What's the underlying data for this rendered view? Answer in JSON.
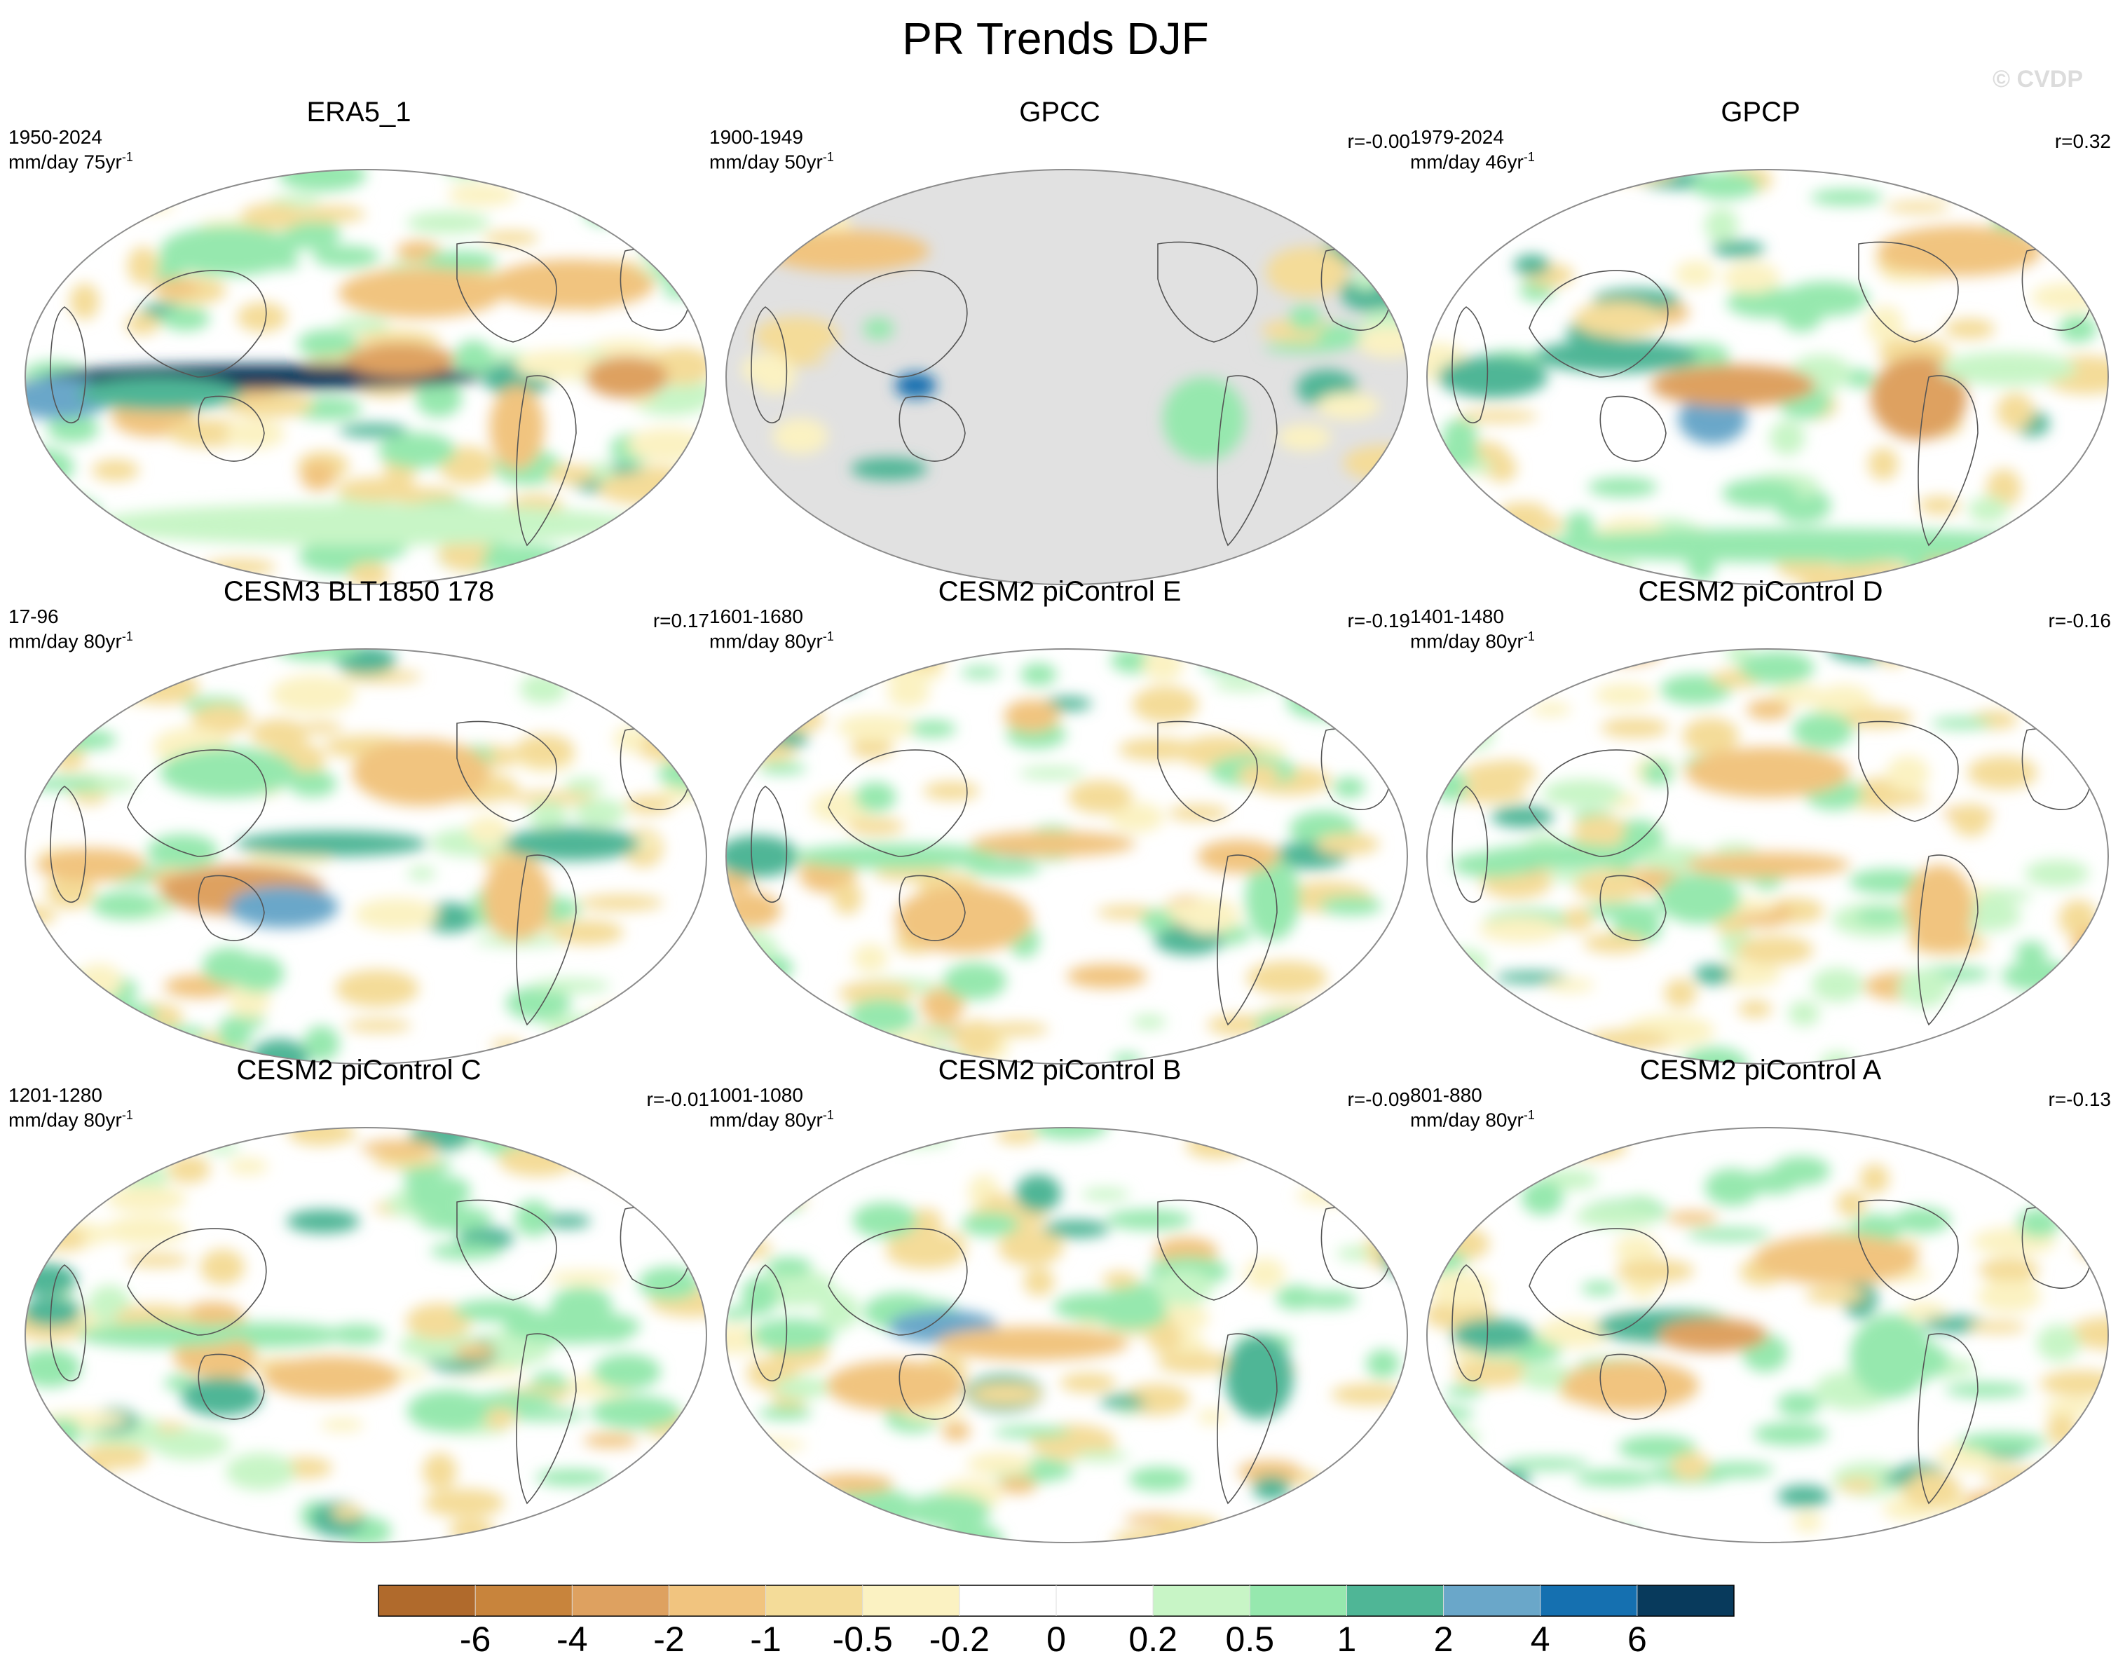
{
  "title": "PR Trends DJF",
  "watermark": "© CVDP",
  "colors": {
    "ocean_base": "#ffffff",
    "missing": "#e1e1e1",
    "outline": "#8c8c8c",
    "coast": "#555555"
  },
  "panels": [
    {
      "title": "ERA5_1",
      "period": "1950-2024",
      "units_main": "mm/day 75yr",
      "units_sup": "-1",
      "corr": "",
      "masked": false,
      "blobs": [
        [
          0.35,
          0.5,
          0.32,
          0.03,
          8
        ],
        [
          0.05,
          0.55,
          0.08,
          0.05,
          3
        ],
        [
          0.2,
          0.54,
          0.12,
          0.04,
          2
        ],
        [
          0.55,
          0.46,
          0.08,
          0.04,
          -2
        ],
        [
          0.58,
          0.3,
          0.12,
          0.06,
          -1
        ],
        [
          0.8,
          0.28,
          0.12,
          0.06,
          -1
        ],
        [
          0.5,
          0.85,
          0.4,
          0.05,
          0.5
        ],
        [
          0.72,
          0.62,
          0.04,
          0.1,
          -1
        ],
        [
          0.3,
          0.2,
          0.1,
          0.06,
          1
        ],
        [
          0.88,
          0.5,
          0.06,
          0.05,
          -2
        ]
      ]
    },
    {
      "title": "GPCC",
      "period": "1900-1949",
      "units_main": "mm/day 50yr",
      "units_sup": "-1",
      "corr": "r=-0.00",
      "masked": true,
      "blobs": [
        [
          0.28,
          0.52,
          0.03,
          0.03,
          5
        ],
        [
          0.18,
          0.2,
          0.12,
          0.05,
          -1
        ],
        [
          0.7,
          0.6,
          0.06,
          0.1,
          1
        ],
        [
          0.85,
          0.25,
          0.06,
          0.06,
          -0.5
        ]
      ]
    },
    {
      "title": "GPCP",
      "period": "1979-2024",
      "units_main": "mm/day 46yr",
      "units_sup": "-1",
      "corr": "r=0.32",
      "masked": false,
      "blobs": [
        [
          0.42,
          0.6,
          0.05,
          0.06,
          4
        ],
        [
          0.28,
          0.45,
          0.12,
          0.04,
          2
        ],
        [
          0.1,
          0.5,
          0.08,
          0.05,
          2
        ],
        [
          0.45,
          0.52,
          0.12,
          0.05,
          -2
        ],
        [
          0.72,
          0.55,
          0.07,
          0.1,
          -2
        ],
        [
          0.55,
          0.9,
          0.4,
          0.04,
          1
        ],
        [
          0.78,
          0.2,
          0.12,
          0.06,
          -1
        ],
        [
          0.85,
          0.48,
          0.1,
          0.04,
          0.5
        ]
      ]
    },
    {
      "title": "CESM3 BLT1850 178",
      "period": "17-96",
      "units_main": "mm/day 80yr",
      "units_sup": "-1",
      "corr": "r=0.17",
      "masked": false,
      "blobs": [
        [
          0.32,
          0.58,
          0.12,
          0.06,
          -2
        ],
        [
          0.38,
          0.62,
          0.08,
          0.05,
          3
        ],
        [
          0.45,
          0.47,
          0.14,
          0.03,
          2
        ],
        [
          0.1,
          0.52,
          0.08,
          0.04,
          -1
        ],
        [
          0.3,
          0.3,
          0.1,
          0.06,
          1
        ],
        [
          0.58,
          0.3,
          0.1,
          0.08,
          -1
        ],
        [
          0.8,
          0.47,
          0.1,
          0.04,
          2
        ],
        [
          0.72,
          0.6,
          0.05,
          0.1,
          -1
        ]
      ]
    },
    {
      "title": "CESM2 piControl E",
      "period": "1601-1680",
      "units_main": "mm/day 80yr",
      "units_sup": "-1",
      "corr": "r=-0.19",
      "masked": false,
      "blobs": [
        [
          0.05,
          0.5,
          0.06,
          0.05,
          2
        ],
        [
          0.25,
          0.5,
          0.15,
          0.03,
          1
        ],
        [
          0.48,
          0.47,
          0.12,
          0.03,
          -1
        ],
        [
          0.8,
          0.6,
          0.04,
          0.1,
          1
        ],
        [
          0.35,
          0.65,
          0.1,
          0.08,
          -1
        ],
        [
          0.75,
          0.5,
          0.06,
          0.04,
          -1
        ]
      ]
    },
    {
      "title": "CESM2 piControl D",
      "period": "1401-1480",
      "units_main": "mm/day 80yr",
      "units_sup": "-1",
      "corr": "r=-0.16",
      "masked": false,
      "blobs": [
        [
          0.5,
          0.3,
          0.12,
          0.06,
          -1
        ],
        [
          0.2,
          0.5,
          0.12,
          0.03,
          1
        ],
        [
          0.4,
          0.6,
          0.06,
          0.06,
          1
        ],
        [
          0.5,
          0.52,
          0.12,
          0.03,
          -1
        ],
        [
          0.75,
          0.62,
          0.05,
          0.1,
          -1
        ],
        [
          0.1,
          0.52,
          0.06,
          0.03,
          1
        ]
      ]
    },
    {
      "title": "CESM2 piControl C",
      "period": "1201-1280",
      "units_main": "mm/day 80yr",
      "units_sup": "-1",
      "corr": "r=-0.01",
      "masked": false,
      "blobs": [
        [
          0.35,
          0.5,
          0.12,
          0.03,
          1
        ],
        [
          0.45,
          0.6,
          0.1,
          0.05,
          -1
        ],
        [
          0.28,
          0.55,
          0.06,
          0.05,
          -1
        ],
        [
          0.2,
          0.5,
          0.12,
          0.03,
          1
        ],
        [
          0.62,
          0.68,
          0.06,
          0.05,
          1
        ],
        [
          0.8,
          0.48,
          0.1,
          0.04,
          1
        ]
      ]
    },
    {
      "title": "CESM2 piControl B",
      "period": "1001-1080",
      "units_main": "mm/day 80yr",
      "units_sup": "-1",
      "corr": "r=-0.09",
      "masked": false,
      "blobs": [
        [
          0.32,
          0.48,
          0.08,
          0.04,
          3
        ],
        [
          0.45,
          0.52,
          0.14,
          0.04,
          -1
        ],
        [
          0.78,
          0.6,
          0.05,
          0.1,
          2
        ],
        [
          0.25,
          0.62,
          0.1,
          0.06,
          -1
        ],
        [
          0.1,
          0.5,
          0.06,
          0.04,
          1
        ]
      ]
    },
    {
      "title": "CESM2 piControl A",
      "period": "801-880",
      "units_main": "mm/day 80yr",
      "units_sup": "-1",
      "corr": "r=-0.13",
      "masked": false,
      "blobs": [
        [
          0.35,
          0.48,
          0.1,
          0.04,
          2
        ],
        [
          0.42,
          0.5,
          0.08,
          0.04,
          -2
        ],
        [
          0.3,
          0.62,
          0.1,
          0.06,
          -1
        ],
        [
          0.1,
          0.5,
          0.06,
          0.04,
          2
        ],
        [
          0.6,
          0.32,
          0.12,
          0.06,
          -1
        ],
        [
          0.68,
          0.55,
          0.06,
          0.1,
          1
        ]
      ]
    }
  ],
  "colorbar": {
    "labels": [
      "-6",
      "-4",
      "-2",
      "-1",
      "-0.5",
      "-0.2",
      "0",
      "0.2",
      "0.5",
      "1",
      "2",
      "4",
      "6"
    ],
    "colors": [
      "#b06a2c",
      "#c8843c",
      "#dea160",
      "#f1c47f",
      "#f4dc99",
      "#fbf2c2",
      "#ffffff",
      "#ffffff",
      "#c8f5c6",
      "#96e8ae",
      "#4fb696",
      "#6aa7c9",
      "#1570b0",
      "#083a5c"
    ]
  }
}
